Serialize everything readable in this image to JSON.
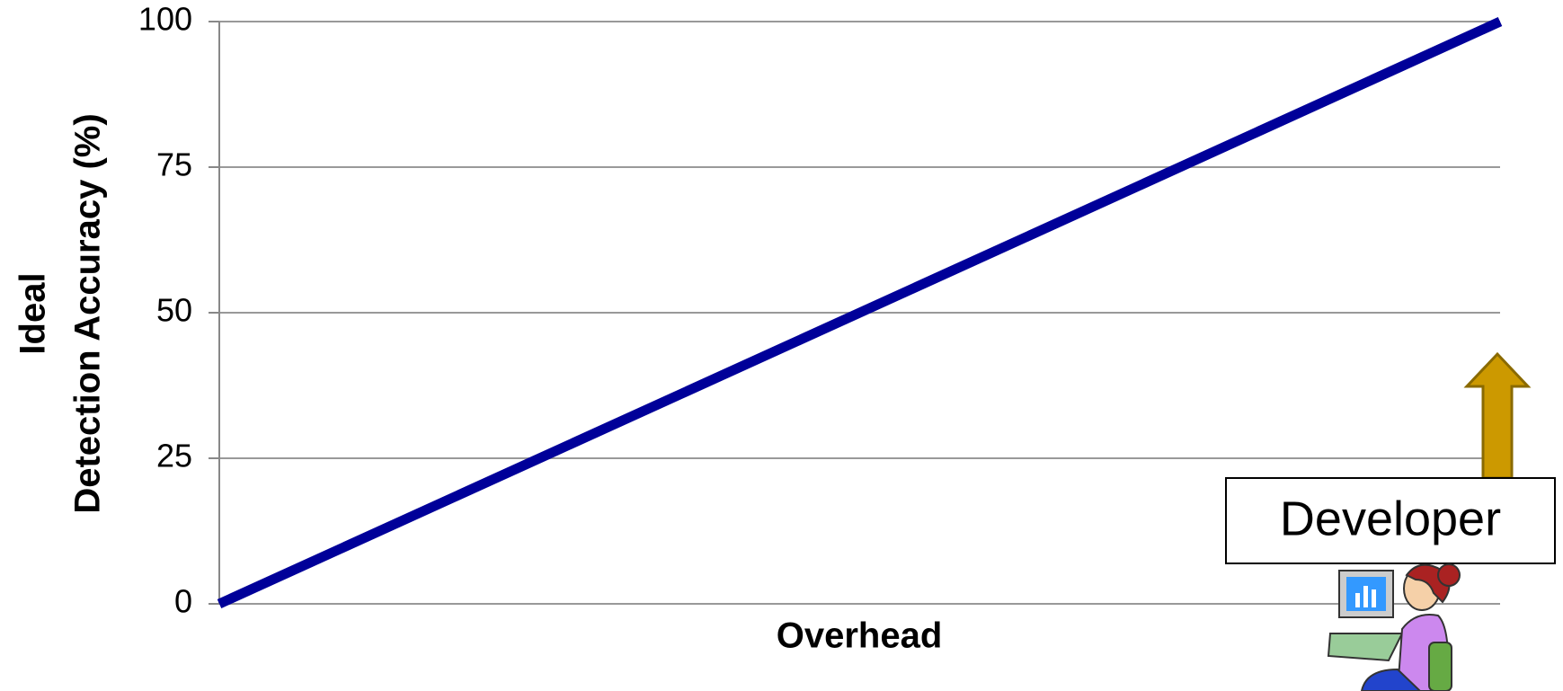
{
  "chart_data": {
    "type": "line",
    "ylabel": [
      "Ideal",
      "Detection Accuracy (%)"
    ],
    "xlabel": "Overhead",
    "annotation": "Developer",
    "categories": [
      null,
      null
    ],
    "values": [
      0,
      100
    ],
    "color": "#000099",
    "ylim": [
      0,
      100
    ],
    "yticks": [
      0,
      25,
      50,
      75,
      100
    ],
    "grid": true
  }
}
